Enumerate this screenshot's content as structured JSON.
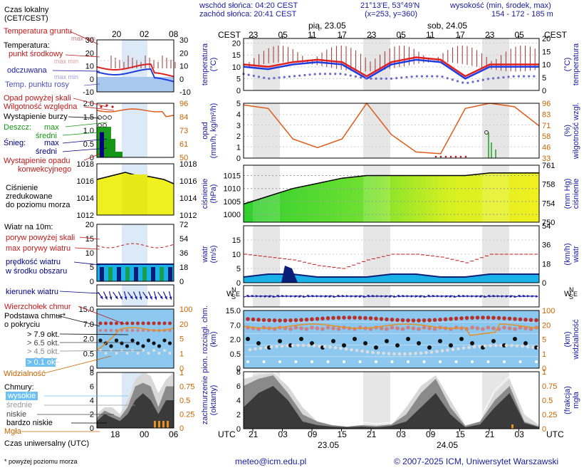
{
  "header": {
    "sunrise": "wschód słońca: 04:20 CEST",
    "sunset": "zachód słońca: 20:41 CEST",
    "coords": "21°13'E, 53°49'N",
    "grid": "(x=253, y=360)",
    "height_title": "wysokość (min, środek, max)",
    "height_values": "154 - 172 - 185 m"
  },
  "legend": {
    "local_time": "Czas lokalny",
    "local_time_sub": "(CET/CEST)",
    "local_ticks": [
      "20",
      "02",
      "08"
    ],
    "utc_ticks": [
      "18",
      "00",
      "06"
    ],
    "utc_label": "Czas uniwersalny (UTC)",
    "ground_temp": "Temperatura gruntu",
    "ground_temp_sub": "max min",
    "temperature": "Temperatura:",
    "mid_point": "punkt środkowy",
    "max_min": "max min",
    "felt": "odczuwana",
    "felt_sub": "max min",
    "dew": "Temp. punktu rosy",
    "temp_ticks": [
      "30",
      "20",
      "10",
      "0",
      "-10"
    ],
    "precip_above": "Opad powyżej skali",
    "humidity": "Wilgotność względna",
    "storm": "Wystąpienie burzy",
    "rain": "Deszcz:",
    "rain_max": "max",
    "rain_mid": "średni",
    "snow": "Śnieg:",
    "snow_max": "max",
    "snow_mid": "średni",
    "convective": "Wystąpienie opadu",
    "convective2": "konwekcyjnego",
    "precip_ticks": [
      "2.0",
      "1.5",
      "1.0",
      "0.5",
      "0"
    ],
    "hum_ticks": [
      "96",
      "84",
      "73",
      "61",
      "50"
    ],
    "pressure": "Ciśnienie",
    "pressure2": "zredukowane",
    "pressure3": "do poziomu morza",
    "press_ticks": [
      "1018",
      "1016",
      "1014",
      "1012"
    ],
    "wind": "Wiatr na 10m:",
    "gust_above": "poryw powyżej skali",
    "max_gust": "max porywy wiatru",
    "wind_speed": "prędkość wiatru",
    "wind_speed2": "w środku obszaru",
    "wind_ticks": [
      "20",
      "15",
      "10",
      "5",
      "0"
    ],
    "wind_kmh": [
      "72",
      "54",
      "36",
      "18",
      "0"
    ],
    "wind_dir": "kierunek wiatru",
    "cloud_top": "Wierzchołek chmur",
    "cloud_base": "Podstawa chmur*",
    "cloud_base2": "o pokryciu",
    "okt": [
      "> 7.9 okt.",
      "> 6.5 okt.",
      "> 4.5 okt.",
      "> 2.5 okt.",
      "> 0.1 okt."
    ],
    "cloud_ticks": [
      "15.0",
      "7.0",
      "2.0",
      "0.5",
      "0"
    ],
    "vis_ticks": [
      "100",
      "20",
      "5",
      "1",
      "0"
    ],
    "visibility": "Widzialność",
    "clouds": "Chmury:",
    "high": "wysokie",
    "mid": "średnie",
    "low": "niskie",
    "very_low": "bardzo niskie",
    "fog": "Mgła",
    "cc_ticks": [
      "8",
      "6",
      "4",
      "2",
      "0"
    ],
    "fog_ticks": [
      "1",
      "0.75",
      "0.5",
      "0.25",
      "0"
    ],
    "footnote": "* powyżej poziomu morza"
  },
  "main": {
    "cest_label": "CEST",
    "utc_label": "UTC",
    "day1": "pią, 23.05",
    "day2": "sob, 24.05",
    "top_ticks": [
      "23",
      "05",
      "11",
      "17",
      "23",
      "05",
      "11",
      "17",
      "23",
      "05"
    ],
    "bottom_ticks": [
      "21",
      "03",
      "09",
      "15",
      "21",
      "03",
      "09",
      "15",
      "21",
      "03"
    ],
    "date1": "23.05",
    "date2": "24.05",
    "panels": {
      "temperature": {
        "label": "temperatura",
        "unit": "(°C)",
        "ticks": [
          "20",
          "15",
          "10",
          "5",
          "0"
        ]
      },
      "precip": {
        "label": "opad",
        "unit": "(mm/h, kg/m²/h)",
        "ticks": [
          "5",
          "4",
          "3",
          "2",
          "1",
          "0"
        ],
        "right_label": "wilgotność wzgl.",
        "right_unit": "(%)",
        "right_ticks": [
          "96",
          "83",
          "71",
          "58",
          "46",
          "33"
        ]
      },
      "pressure": {
        "label": "ciśnienie",
        "unit": "(hPa)",
        "ticks": [
          "1015",
          "1010",
          "1005",
          "1000"
        ],
        "right_label": "ciśnienie",
        "right_unit": "(mm Hg)",
        "right_ticks": [
          "761",
          "758",
          "754",
          "750"
        ]
      },
      "wind": {
        "label": "wiatr",
        "unit": "(m/s)",
        "ticks": [
          "15",
          "10",
          "5",
          "0"
        ],
        "right_label": "wiatr",
        "right_unit": "(km/h)",
        "right_ticks": [
          "54",
          "36",
          "18",
          "0"
        ]
      },
      "winddir": {
        "left": "W",
        "n": "N",
        "s": "S",
        "e": "E"
      },
      "cloudbase": {
        "label": "pion. rozciągł. chm.",
        "unit": "(km)",
        "ticks": [
          "15.0",
          "7.0",
          "2.0",
          "0.5",
          "0"
        ],
        "right_label": "widzialność",
        "right_unit": "(km)",
        "right_ticks": [
          "100",
          "20",
          "5",
          "1",
          "0"
        ]
      },
      "cloudcover": {
        "label": "zachmurzenie",
        "unit": "(oktanty)",
        "ticks": [
          "8",
          "6",
          "4",
          "2",
          "0"
        ],
        "right_label": "mgła",
        "right_unit": "(frakcja)",
        "right_ticks": [
          "1",
          "0.75",
          "0.5",
          "0.25",
          "0"
        ]
      }
    }
  },
  "footer": {
    "email": "meteo@icm.edu.pl",
    "copyright": "© 2007-2025 ICM, Uniwersytet Warszawski"
  },
  "colors": {
    "red": "#e02020",
    "blue": "#1e3ce0",
    "dew": "#6a6ad0",
    "humidity": "#e05a18",
    "pressure_line": "#000000",
    "rain": "#1ea01e",
    "wind_fill": "#1ab0e8",
    "wind_dark": "#0a1e78",
    "sky": "#8cc8f0",
    "night": "#e6e6e6"
  },
  "chart_data": {
    "type": "line",
    "x_hours_utc": [
      0,
      6,
      12,
      18,
      24,
      30,
      36,
      42,
      48,
      54,
      60,
      66,
      72
    ],
    "series": [
      {
        "name": "punkt środkowy",
        "values": [
          11,
          10,
          12,
          13,
          12,
          6,
          12,
          14,
          13,
          6,
          11,
          11,
          11
        ]
      },
      {
        "name": "odczuwana",
        "values": [
          10,
          9,
          11,
          12,
          11,
          5,
          11,
          13,
          12,
          5,
          10,
          10,
          10
        ]
      },
      {
        "name": "Temp. punktu rosy",
        "values": [
          7,
          5,
          6,
          7,
          7,
          5,
          5,
          6,
          6,
          3,
          5,
          6,
          6
        ]
      },
      {
        "name": "Wilgotność względna",
        "values": [
          94,
          90,
          55,
          45,
          55,
          96,
          60,
          40,
          38,
          90,
          96,
          92,
          70
        ]
      },
      {
        "name": "Ciśnienie",
        "values": [
          1004,
          1007,
          1010,
          1012,
          1014,
          1015,
          1015,
          1015,
          1015,
          1015,
          1016,
          1016,
          1016
        ]
      },
      {
        "name": "prędkość wiatru",
        "values": [
          2,
          3,
          3,
          2,
          2,
          2,
          3,
          3,
          2,
          2,
          3,
          3,
          3
        ]
      },
      {
        "name": "max porywy wiatru",
        "values": [
          10,
          9,
          8,
          6,
          5,
          8,
          10,
          10,
          9,
          7,
          10,
          10,
          10
        ]
      }
    ]
  }
}
